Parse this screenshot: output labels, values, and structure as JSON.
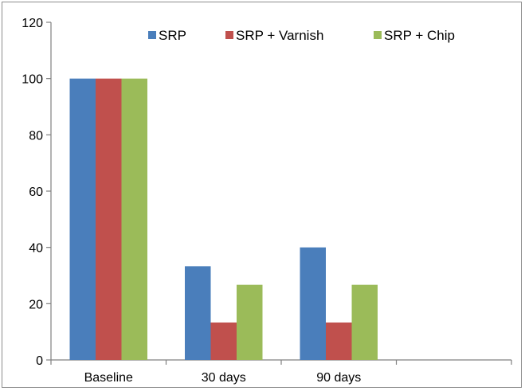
{
  "chart_data": {
    "type": "bar",
    "categories": [
      "Baseline",
      "30 days",
      "90 days",
      ""
    ],
    "series": [
      {
        "name": "SRP",
        "values": [
          100,
          33.3,
          40,
          null
        ],
        "color": "#4a7ebb"
      },
      {
        "name": "SRP + Varnish",
        "values": [
          100,
          13.3,
          13.3,
          null
        ],
        "color": "#c0504d"
      },
      {
        "name": "SRP + Chip",
        "values": [
          100,
          26.7,
          26.7,
          null
        ],
        "color": "#9bbb59"
      }
    ],
    "title": "",
    "xlabel": "",
    "ylabel": "",
    "ylim": [
      0,
      120
    ],
    "yticks": [
      0,
      20,
      40,
      60,
      80,
      100,
      120
    ],
    "grid": false,
    "legend_position": "top"
  }
}
